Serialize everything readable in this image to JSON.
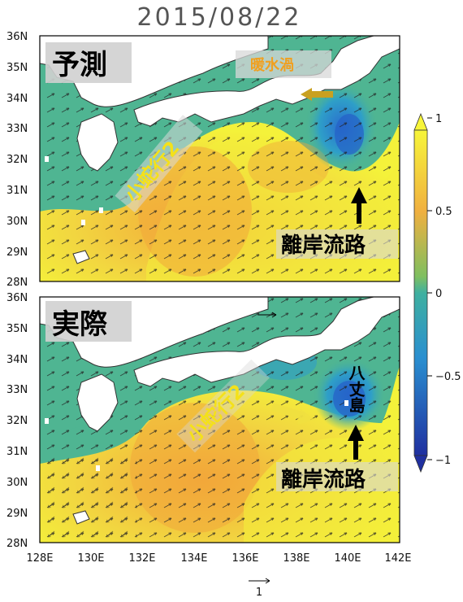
{
  "title": "2015/08/22",
  "panels": [
    {
      "label": "予測",
      "annotations": {
        "warm_eddy": "暖水渦",
        "meander": "小蛇行2",
        "offshore": "離岸流路"
      }
    },
    {
      "label": "実際",
      "annotations": {
        "meander": "小蛇行2",
        "offshore": "離岸流路",
        "island": "八丈島"
      }
    }
  ],
  "lat_ticks": [
    "36N",
    "35N",
    "34N",
    "33N",
    "32N",
    "31N",
    "30N",
    "29N",
    "28N"
  ],
  "lon_ticks": [
    "128E",
    "130E",
    "132E",
    "134E",
    "136E",
    "138E",
    "140E",
    "142E"
  ],
  "colorbar": {
    "ticks": [
      "1",
      "0.5",
      "0",
      "−0.5",
      "−1"
    ],
    "range": [
      -1,
      1
    ]
  },
  "reference_vector": {
    "label": "1"
  },
  "colors": {
    "land": "#ffffff",
    "high": "#f4f23a",
    "mid_high": "#f0b040",
    "zero": "#4fb592",
    "low": "#1f6fc0",
    "very_low": "#2030a0"
  }
}
